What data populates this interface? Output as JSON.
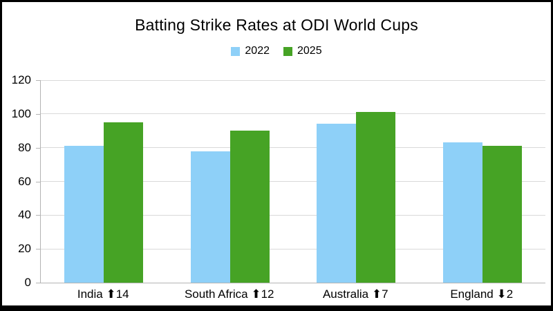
{
  "chart_data": {
    "type": "bar",
    "title": "Batting Strike Rates at ODI World Cups",
    "categories": [
      "India ⬆14",
      "South Africa ⬆12",
      "Australia ⬆7",
      "England ⬇2"
    ],
    "series": [
      {
        "name": "2022",
        "color": "#8ED0F8",
        "values": [
          81,
          78,
          94,
          83
        ]
      },
      {
        "name": "2025",
        "color": "#46A325",
        "values": [
          95,
          90,
          101,
          81
        ]
      }
    ],
    "xlabel": "",
    "ylabel": "",
    "ylim": [
      0,
      120
    ],
    "ytick_step": 20,
    "grid": true,
    "legend_position": "top"
  },
  "colors": {
    "background": "#ffffff",
    "frame": "#000000",
    "axis_line": "#b3b3b3",
    "gridline": "#d9d9d9",
    "text": "#000000"
  }
}
